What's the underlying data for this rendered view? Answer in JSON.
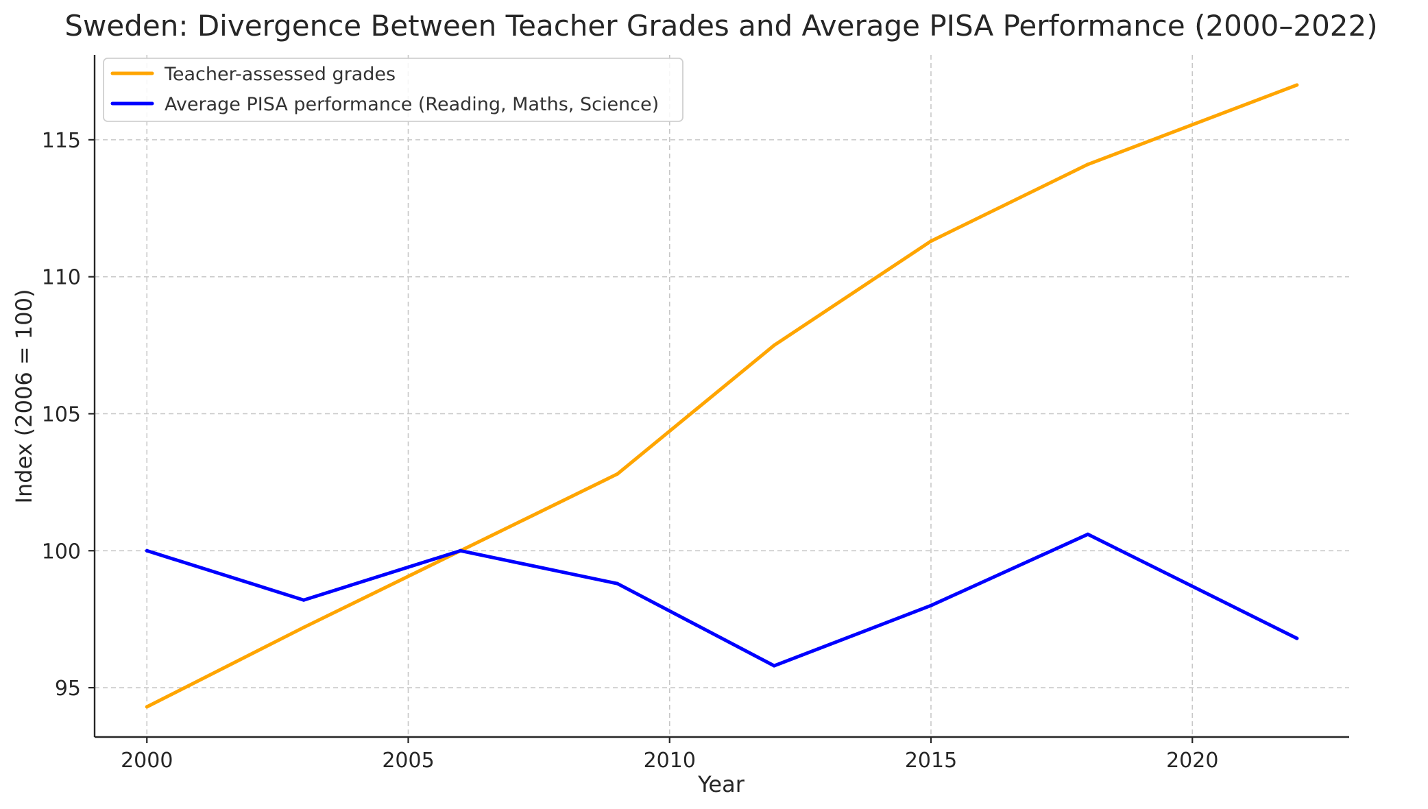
{
  "chart_data": {
    "type": "line",
    "title": "Sweden: Divergence Between Teacher Grades and Average PISA Performance (2000–2022)",
    "xlabel": "Year",
    "ylabel": "Index (2006 = 100)",
    "xlim": [
      1999,
      2023
    ],
    "ylim": [
      93.2,
      118.1
    ],
    "xticks": [
      2000,
      2005,
      2010,
      2015,
      2020
    ],
    "yticks": [
      95,
      100,
      105,
      110,
      115
    ],
    "grid": true,
    "legend_position": "upper-left",
    "series": [
      {
        "name": "Teacher-assessed grades",
        "color": "#ffa500",
        "x": [
          2000,
          2003,
          2006,
          2009,
          2012,
          2015,
          2018,
          2022
        ],
        "y": [
          94.3,
          97.2,
          100.0,
          102.8,
          107.5,
          111.3,
          114.1,
          117.0
        ]
      },
      {
        "name": "Average PISA performance (Reading, Maths, Science)",
        "color": "#0000ff",
        "x": [
          2000,
          2003,
          2006,
          2009,
          2012,
          2015,
          2018,
          2022
        ],
        "y": [
          100.0,
          98.2,
          100.0,
          98.8,
          95.8,
          98.0,
          100.6,
          96.8
        ]
      }
    ]
  }
}
